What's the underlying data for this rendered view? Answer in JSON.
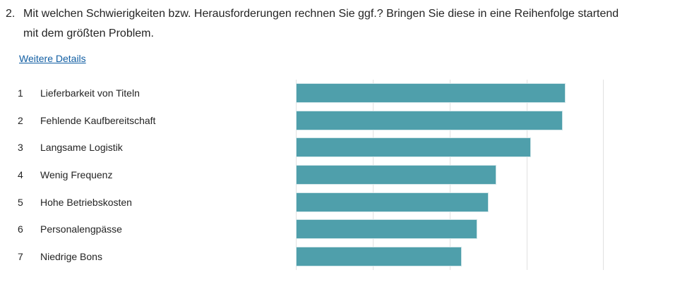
{
  "question": {
    "number": "2.",
    "text": "Mit welchen Schwierigkeiten bzw. Herausforderungen rechnen Sie ggf.? Bringen Sie diese in eine Reihenfolge startend mit dem größten Problem."
  },
  "details_link_label": "Weitere Details",
  "colors": {
    "bar_fill": "#4f9fab",
    "bar_border": "#d2e6e9",
    "gridline": "#e1e1e1",
    "link": "#115ea3",
    "text": "#242424"
  },
  "chart_data": {
    "type": "bar",
    "orientation": "horizontal",
    "title": "",
    "xlabel": "",
    "ylabel": "",
    "legend": "none",
    "grid": true,
    "value_labels_shown": false,
    "axis_tick_labels_shown": false,
    "axis_percent_range": [
      0,
      100
    ],
    "gridlines_percent": [
      0,
      25,
      50,
      75,
      100
    ],
    "ranks": [
      1,
      2,
      3,
      4,
      5,
      6,
      7
    ],
    "categories": [
      "Lieferbarkeit von Titeln",
      "Fehlende Kaufbereitschaft",
      "Langsame Logistik",
      "Wenig Frequenz",
      "Hohe Betriebskosten",
      "Personalengpässe",
      "Niedrige Bons"
    ],
    "values_percent_of_axis": [
      87.7,
      86.6,
      76.4,
      65.1,
      62.6,
      58.9,
      53.9
    ]
  }
}
